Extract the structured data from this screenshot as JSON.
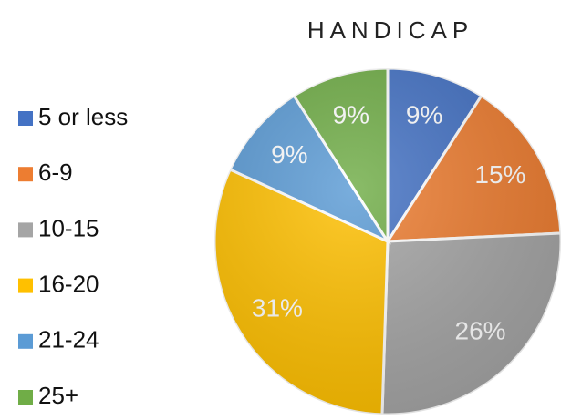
{
  "chart_data": {
    "type": "pie",
    "title": "HANDICAP",
    "categories": [
      "5 or less",
      "6-9",
      "10-15",
      "16-20",
      "21-24",
      "25+"
    ],
    "values": [
      9,
      15,
      26,
      31,
      9,
      9
    ],
    "value_labels": [
      "9%",
      "15%",
      "26%",
      "31%",
      "9%",
      "9%"
    ],
    "colors": [
      "#4472c4",
      "#ed7d31",
      "#a5a5a5",
      "#ffc000",
      "#5b9bd5",
      "#70ad47"
    ],
    "legend": "left"
  }
}
